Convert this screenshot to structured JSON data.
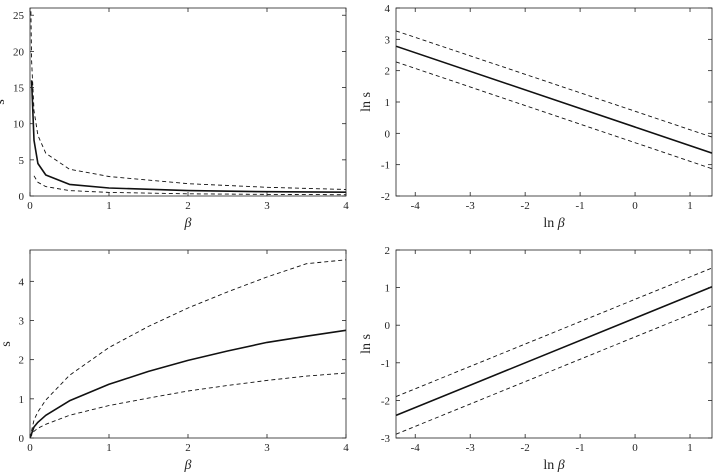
{
  "chart_data": [
    {
      "type": "line",
      "xlabel": "β",
      "ylabel": "s",
      "xlim": [
        0,
        4
      ],
      "ylim": [
        0,
        26
      ],
      "xticks": [
        "0",
        "1",
        "2",
        "3",
        "4"
      ],
      "yticks": [
        "0",
        "5",
        "10",
        "15",
        "20",
        "25"
      ],
      "grid": false,
      "series": [
        {
          "style": "dashed",
          "x": [
            0.01,
            0.02,
            0.05,
            0.1,
            0.2,
            0.5,
            1,
            2,
            3,
            4
          ],
          "y": [
            26.5,
            18.7,
            11.8,
            8.4,
            5.9,
            3.7,
            2.7,
            1.7,
            1.2,
            0.9
          ]
        },
        {
          "style": "solid",
          "x": [
            0.02,
            0.05,
            0.1,
            0.2,
            0.5,
            1,
            2,
            3,
            4
          ],
          "y": [
            16.0,
            7.7,
            4.5,
            2.9,
            1.6,
            1.1,
            0.75,
            0.6,
            0.52
          ]
        },
        {
          "style": "dashed",
          "x": [
            0.05,
            0.1,
            0.2,
            0.5,
            1,
            2,
            3,
            4
          ],
          "y": [
            2.8,
            1.9,
            1.3,
            0.75,
            0.5,
            0.3,
            0.22,
            0.18
          ]
        }
      ]
    },
    {
      "type": "line",
      "xlabel": "ln β",
      "ylabel": "ln s",
      "xlim": [
        -4.35,
        1.4
      ],
      "ylim": [
        -2,
        4
      ],
      "xticks": [
        "-4",
        "-3",
        "-2",
        "-1",
        "0",
        "1"
      ],
      "yticks": [
        "-2",
        "-1",
        "0",
        "1",
        "2",
        "3",
        "4"
      ],
      "grid": false,
      "series": [
        {
          "style": "dashed",
          "x": [
            -4.35,
            1.4
          ],
          "y": [
            3.27,
            -0.12
          ]
        },
        {
          "style": "solid",
          "x": [
            -4.35,
            1.4
          ],
          "y": [
            2.78,
            -0.63
          ]
        },
        {
          "style": "dashed",
          "x": [
            -4.35,
            1.4
          ],
          "y": [
            2.28,
            -1.13
          ]
        }
      ]
    },
    {
      "type": "line",
      "xlabel": "β",
      "ylabel": "s",
      "xlim": [
        0,
        4
      ],
      "ylim": [
        0,
        4.8
      ],
      "xticks": [
        "0",
        "1",
        "2",
        "3",
        "4"
      ],
      "yticks": [
        "0",
        "1",
        "2",
        "3",
        "4"
      ],
      "grid": false,
      "series": [
        {
          "style": "dashed",
          "x": [
            0,
            0.05,
            0.1,
            0.2,
            0.5,
            1,
            1.5,
            2,
            2.5,
            3,
            3.5,
            4
          ],
          "y": [
            0,
            0.46,
            0.67,
            0.97,
            1.6,
            2.31,
            2.85,
            3.32,
            3.73,
            4.11,
            4.45,
            4.55
          ]
        },
        {
          "style": "solid",
          "x": [
            0,
            0.05,
            0.1,
            0.2,
            0.5,
            1,
            1.5,
            2,
            2.5,
            3,
            3.5,
            4
          ],
          "y": [
            0,
            0.28,
            0.4,
            0.58,
            0.95,
            1.37,
            1.7,
            1.98,
            2.22,
            2.44,
            2.6,
            2.75
          ]
        },
        {
          "style": "dashed",
          "x": [
            0,
            0.05,
            0.1,
            0.2,
            0.5,
            1,
            1.5,
            2,
            2.5,
            3,
            3.5,
            4
          ],
          "y": [
            0,
            0.17,
            0.25,
            0.35,
            0.58,
            0.83,
            1.02,
            1.2,
            1.34,
            1.47,
            1.58,
            1.66
          ]
        }
      ]
    },
    {
      "type": "line",
      "xlabel": "ln β",
      "ylabel": "ln s",
      "xlim": [
        -4.35,
        1.4
      ],
      "ylim": [
        -3,
        2
      ],
      "xticks": [
        "-4",
        "-3",
        "-2",
        "-1",
        "0",
        "1"
      ],
      "yticks": [
        "-3",
        "-2",
        "-1",
        "0",
        "1",
        "2"
      ],
      "grid": false,
      "series": [
        {
          "style": "dashed",
          "x": [
            -4.35,
            1.4
          ],
          "y": [
            -1.9,
            1.52
          ]
        },
        {
          "style": "solid",
          "x": [
            -4.35,
            1.4
          ],
          "y": [
            -2.4,
            1.02
          ]
        },
        {
          "style": "dashed",
          "x": [
            -4.35,
            1.4
          ],
          "y": [
            -2.9,
            0.52
          ]
        }
      ]
    }
  ]
}
